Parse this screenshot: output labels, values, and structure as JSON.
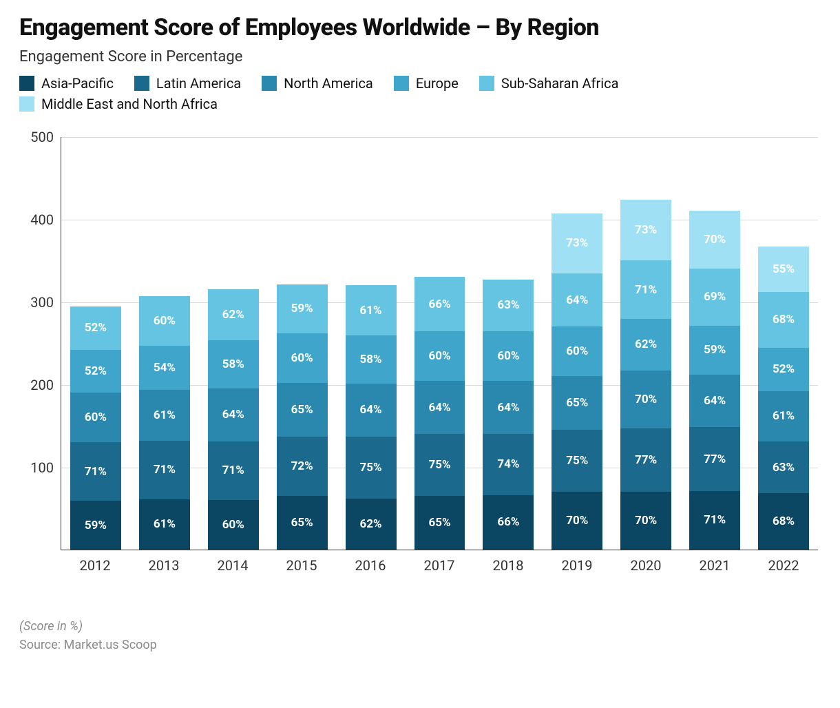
{
  "title": "Engagement Score of Employees Worldwide – By Region",
  "subtitle": "Engagement Score in Percentage",
  "footnote1": "(Score in %)",
  "footnote2": "Source: Market.us Scoop",
  "chart": {
    "type": "stacked-bar",
    "ylim": [
      0,
      500
    ],
    "yticks": [
      0,
      100,
      200,
      300,
      400,
      500
    ],
    "grid_color": "#d9d9d9",
    "background_color": "#ffffff",
    "value_suffix": "%",
    "value_fontsize": 17,
    "value_fontweight": 700,
    "value_color": "#ffffff",
    "axis_label_fontsize": 20,
    "axis_label_color": "#333333",
    "bar_width_ratio": 0.74,
    "categories": [
      "2012",
      "2013",
      "2014",
      "2015",
      "2016",
      "2017",
      "2018",
      "2019",
      "2020",
      "2021",
      "2022"
    ],
    "series": [
      {
        "name": "Asia-Pacific",
        "color": "#0b4663"
      },
      {
        "name": "Latin America",
        "color": "#1b6a8d"
      },
      {
        "name": "North America",
        "color": "#2a88af"
      },
      {
        "name": "Europe",
        "color": "#3fa5cb"
      },
      {
        "name": "Sub-Saharan Africa",
        "color": "#66c4e3"
      },
      {
        "name": "Middle East and North Africa",
        "color": "#9fe0f5"
      }
    ],
    "data": [
      {
        "year": "2012",
        "values": [
          59,
          71,
          60,
          52,
          52,
          null
        ]
      },
      {
        "year": "2013",
        "values": [
          61,
          71,
          61,
          54,
          60,
          null
        ]
      },
      {
        "year": "2014",
        "values": [
          60,
          71,
          64,
          58,
          62,
          null
        ]
      },
      {
        "year": "2015",
        "values": [
          65,
          72,
          65,
          60,
          59,
          null
        ]
      },
      {
        "year": "2016",
        "values": [
          62,
          75,
          64,
          58,
          61,
          null
        ]
      },
      {
        "year": "2017",
        "values": [
          65,
          75,
          64,
          60,
          66,
          null
        ]
      },
      {
        "year": "2018",
        "values": [
          66,
          74,
          64,
          60,
          63,
          null
        ]
      },
      {
        "year": "2019",
        "values": [
          70,
          75,
          65,
          60,
          64,
          73
        ]
      },
      {
        "year": "2020",
        "values": [
          70,
          77,
          70,
          62,
          71,
          73
        ]
      },
      {
        "year": "2021",
        "values": [
          71,
          77,
          64,
          59,
          69,
          70
        ]
      },
      {
        "year": "2022",
        "values": [
          68,
          63,
          61,
          52,
          68,
          55
        ]
      }
    ]
  }
}
